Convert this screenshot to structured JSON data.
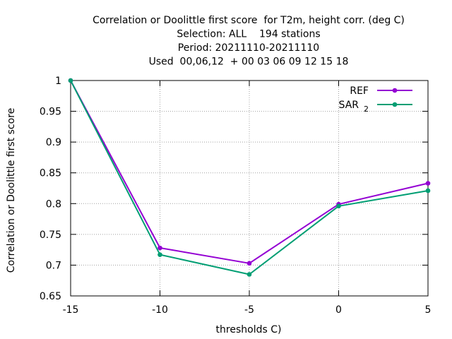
{
  "chart_data": {
    "type": "line",
    "title_lines": [
      "Correlation or Doolittle first score  for T2m, height corr. (deg C)",
      "Selection: ALL    194 stations",
      "Period: 20211110-20211110",
      "Used  00,06,12  + 00 03 06 09 12 15 18"
    ],
    "xlabel": "thresholds C)",
    "ylabel": "Correlation or Doolittle first score",
    "x": [
      -15,
      -10,
      -5,
      0,
      5
    ],
    "xlim": [
      -15,
      5
    ],
    "ylim": [
      0.65,
      1.0
    ],
    "xticks": [
      -15,
      -10,
      -5,
      0,
      5
    ],
    "xtick_labels": [
      "-15",
      "-10",
      "-5",
      "0",
      "5"
    ],
    "yticks": [
      0.65,
      0.7,
      0.75,
      0.8,
      0.85,
      0.9,
      0.95,
      1.0
    ],
    "ytick_labels": [
      "0.65",
      "0.7",
      "0.75",
      "0.8",
      "0.85",
      "0.9",
      "0.95",
      "1"
    ],
    "grid": true,
    "legend_position": "top-right",
    "series": [
      {
        "name": "REF",
        "color": "#9400d3",
        "values": [
          1.0,
          0.728,
          0.703,
          0.799,
          0.833
        ]
      },
      {
        "name": "SAR",
        "name_subscript": "2",
        "color": "#009e73",
        "values": [
          1.0,
          0.717,
          0.685,
          0.796,
          0.821
        ]
      }
    ]
  }
}
